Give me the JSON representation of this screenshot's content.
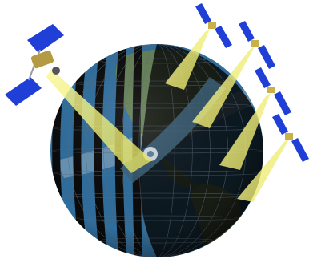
{
  "scene": {
    "subject": "satellites-over-earth-globe",
    "globe": {
      "ocean_color": "#2f6d9c",
      "land_color": "#6f8a5a",
      "stripe_color": "#0a0a0a",
      "night_color": "#050505",
      "grid_color": "#5a6a7a"
    },
    "satellites": [
      {
        "name": "satellite-left-large",
        "panel_color": "#1f3fd6",
        "body_color": "#b59a44"
      },
      {
        "name": "satellite-top-right-1",
        "panel_color": "#1f3fd6",
        "body_color": "#c8b04a"
      },
      {
        "name": "satellite-top-right-2",
        "panel_color": "#1f3fd6",
        "body_color": "#c8b04a"
      },
      {
        "name": "satellite-right-3",
        "panel_color": "#1f3fd6",
        "body_color": "#c8b04a"
      },
      {
        "name": "satellite-right-4",
        "panel_color": "#1f3fd6",
        "body_color": "#c8b04a"
      }
    ],
    "beam_color": "#f2f27a"
  }
}
